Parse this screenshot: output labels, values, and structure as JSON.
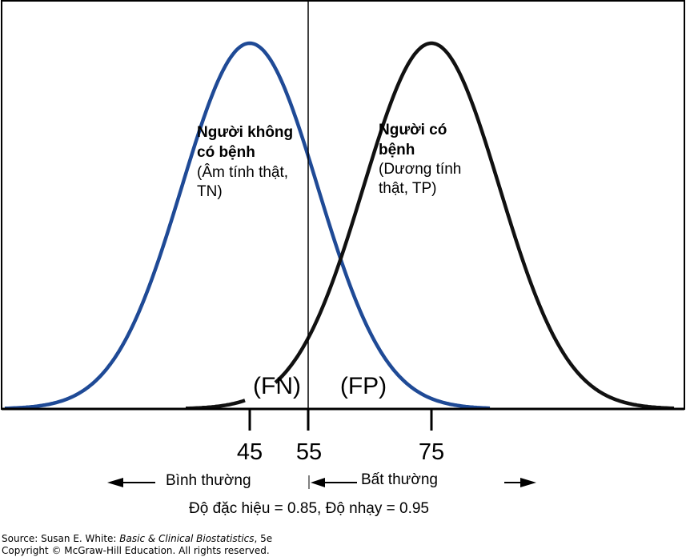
{
  "diagram": {
    "x_ticks": [
      "45",
      "55",
      "75"
    ],
    "cutoff": "55",
    "healthy": {
      "name_line1": "Người không",
      "name_line2": "có bệnh",
      "desc_line1": "(Âm tính thật,",
      "desc_line2": "TN)",
      "mean": 45,
      "color": "#1f4a96"
    },
    "diseased": {
      "name_line1": "Người có",
      "name_line2": "bệnh",
      "desc_line1": "(Dương tính",
      "desc_line2": "thật, TP)",
      "mean": 75,
      "color": "#111111"
    },
    "fn_label": "(FN)",
    "fp_label": "(FP)",
    "left_arrow_label": "Bình thường",
    "right_arrow_label": "Bất thường",
    "formula": "Độ đặc hiệu = 0.85, Độ nhạy = 0.95"
  },
  "source": {
    "prefix": "Source: Susan E. White: ",
    "title": "Basic & Clinical Biostatistics",
    "suffix": ", 5e",
    "copyright": "Copyright © McGraw-Hill Education. All rights reserved."
  }
}
